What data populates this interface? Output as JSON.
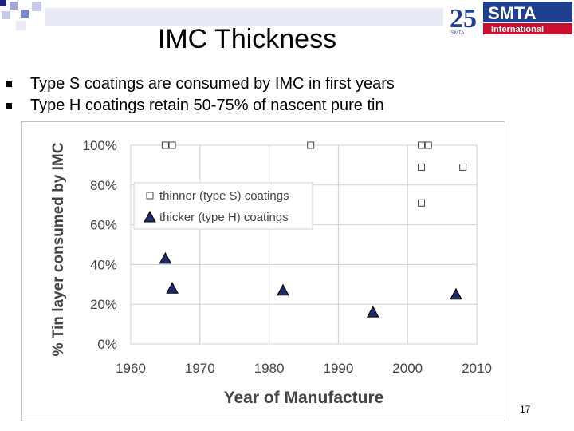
{
  "slide": {
    "title": "IMC Thickness",
    "bullets": [
      "Type S coatings are consumed by IMC in first years",
      "Type H coatings retain 50-75% of nascent pure tin"
    ],
    "page_number": "17"
  },
  "logo": {
    "anniversary": "25",
    "anniversary_sub": "SMTA",
    "brand": "SMTA",
    "brand_sub": "International"
  },
  "colors": {
    "logo_blue": "#1f3f8f",
    "logo_red": "#c8102e",
    "marker_fill": "#1f2a6e",
    "deco_blue": "#1a237e"
  },
  "chart_data": {
    "type": "scatter",
    "xlabel": "Year of Manufacture",
    "ylabel": "% Tin layer consumed by IMC",
    "xlim": [
      1960,
      2010
    ],
    "ylim": [
      0,
      100
    ],
    "x_ticks": [
      "1960",
      "1970",
      "1980",
      "1990",
      "2000",
      "2010"
    ],
    "y_ticks": [
      "0%",
      "20%",
      "40%",
      "60%",
      "80%",
      "100%"
    ],
    "grid": true,
    "legend_position": "upper-left",
    "series": [
      {
        "name": "thinner (type S) coatings",
        "marker": "open-square",
        "points": [
          [
            1965,
            100
          ],
          [
            1966,
            100
          ],
          [
            1986,
            100
          ],
          [
            2002,
            100
          ],
          [
            2002,
            89
          ],
          [
            2002,
            71
          ],
          [
            2003,
            100
          ],
          [
            2008,
            89
          ]
        ]
      },
      {
        "name": "thicker (type H) coatings",
        "marker": "filled-triangle",
        "points": [
          [
            1965,
            43
          ],
          [
            1966,
            28
          ],
          [
            1982,
            27
          ],
          [
            1995,
            16
          ],
          [
            2007,
            25
          ]
        ]
      }
    ]
  }
}
